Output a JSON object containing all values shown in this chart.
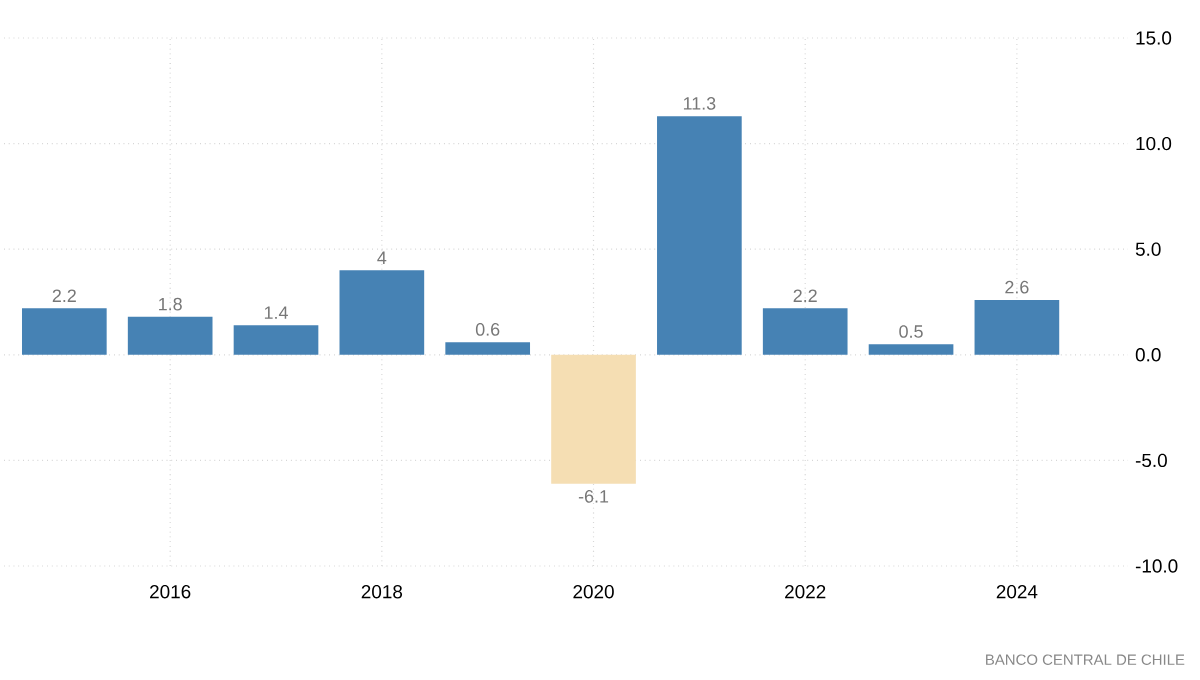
{
  "chart_data": {
    "type": "bar",
    "x": [
      2015,
      2016,
      2017,
      2018,
      2019,
      2020,
      2021,
      2022,
      2023,
      2024
    ],
    "values": [
      2.2,
      1.8,
      1.4,
      4,
      0.6,
      -6.1,
      11.3,
      2.2,
      0.5,
      2.6
    ],
    "colors": [
      "#4682b4",
      "#4682b4",
      "#4682b4",
      "#4682b4",
      "#4682b4",
      "#f5deb3",
      "#4682b4",
      "#4682b4",
      "#4682b4",
      "#4682b4"
    ],
    "data_labels": true,
    "xlim": [
      2014.43,
      2025.05
    ],
    "xticks": [
      2016,
      2018,
      2020,
      2022,
      2024
    ],
    "ylim": [
      -10,
      15
    ],
    "yticks": [
      {
        "value": -10,
        "label": "-10.0"
      },
      {
        "value": -5,
        "label": "-5.0"
      },
      {
        "value": 0,
        "label": "0.0"
      },
      {
        "value": 5,
        "label": "5.0"
      },
      {
        "value": 10,
        "label": "10.0"
      },
      {
        "value": 15,
        "label": "15.0"
      }
    ],
    "grid": true,
    "annotations": [
      "BANCO CENTRAL DE CHILE"
    ]
  }
}
